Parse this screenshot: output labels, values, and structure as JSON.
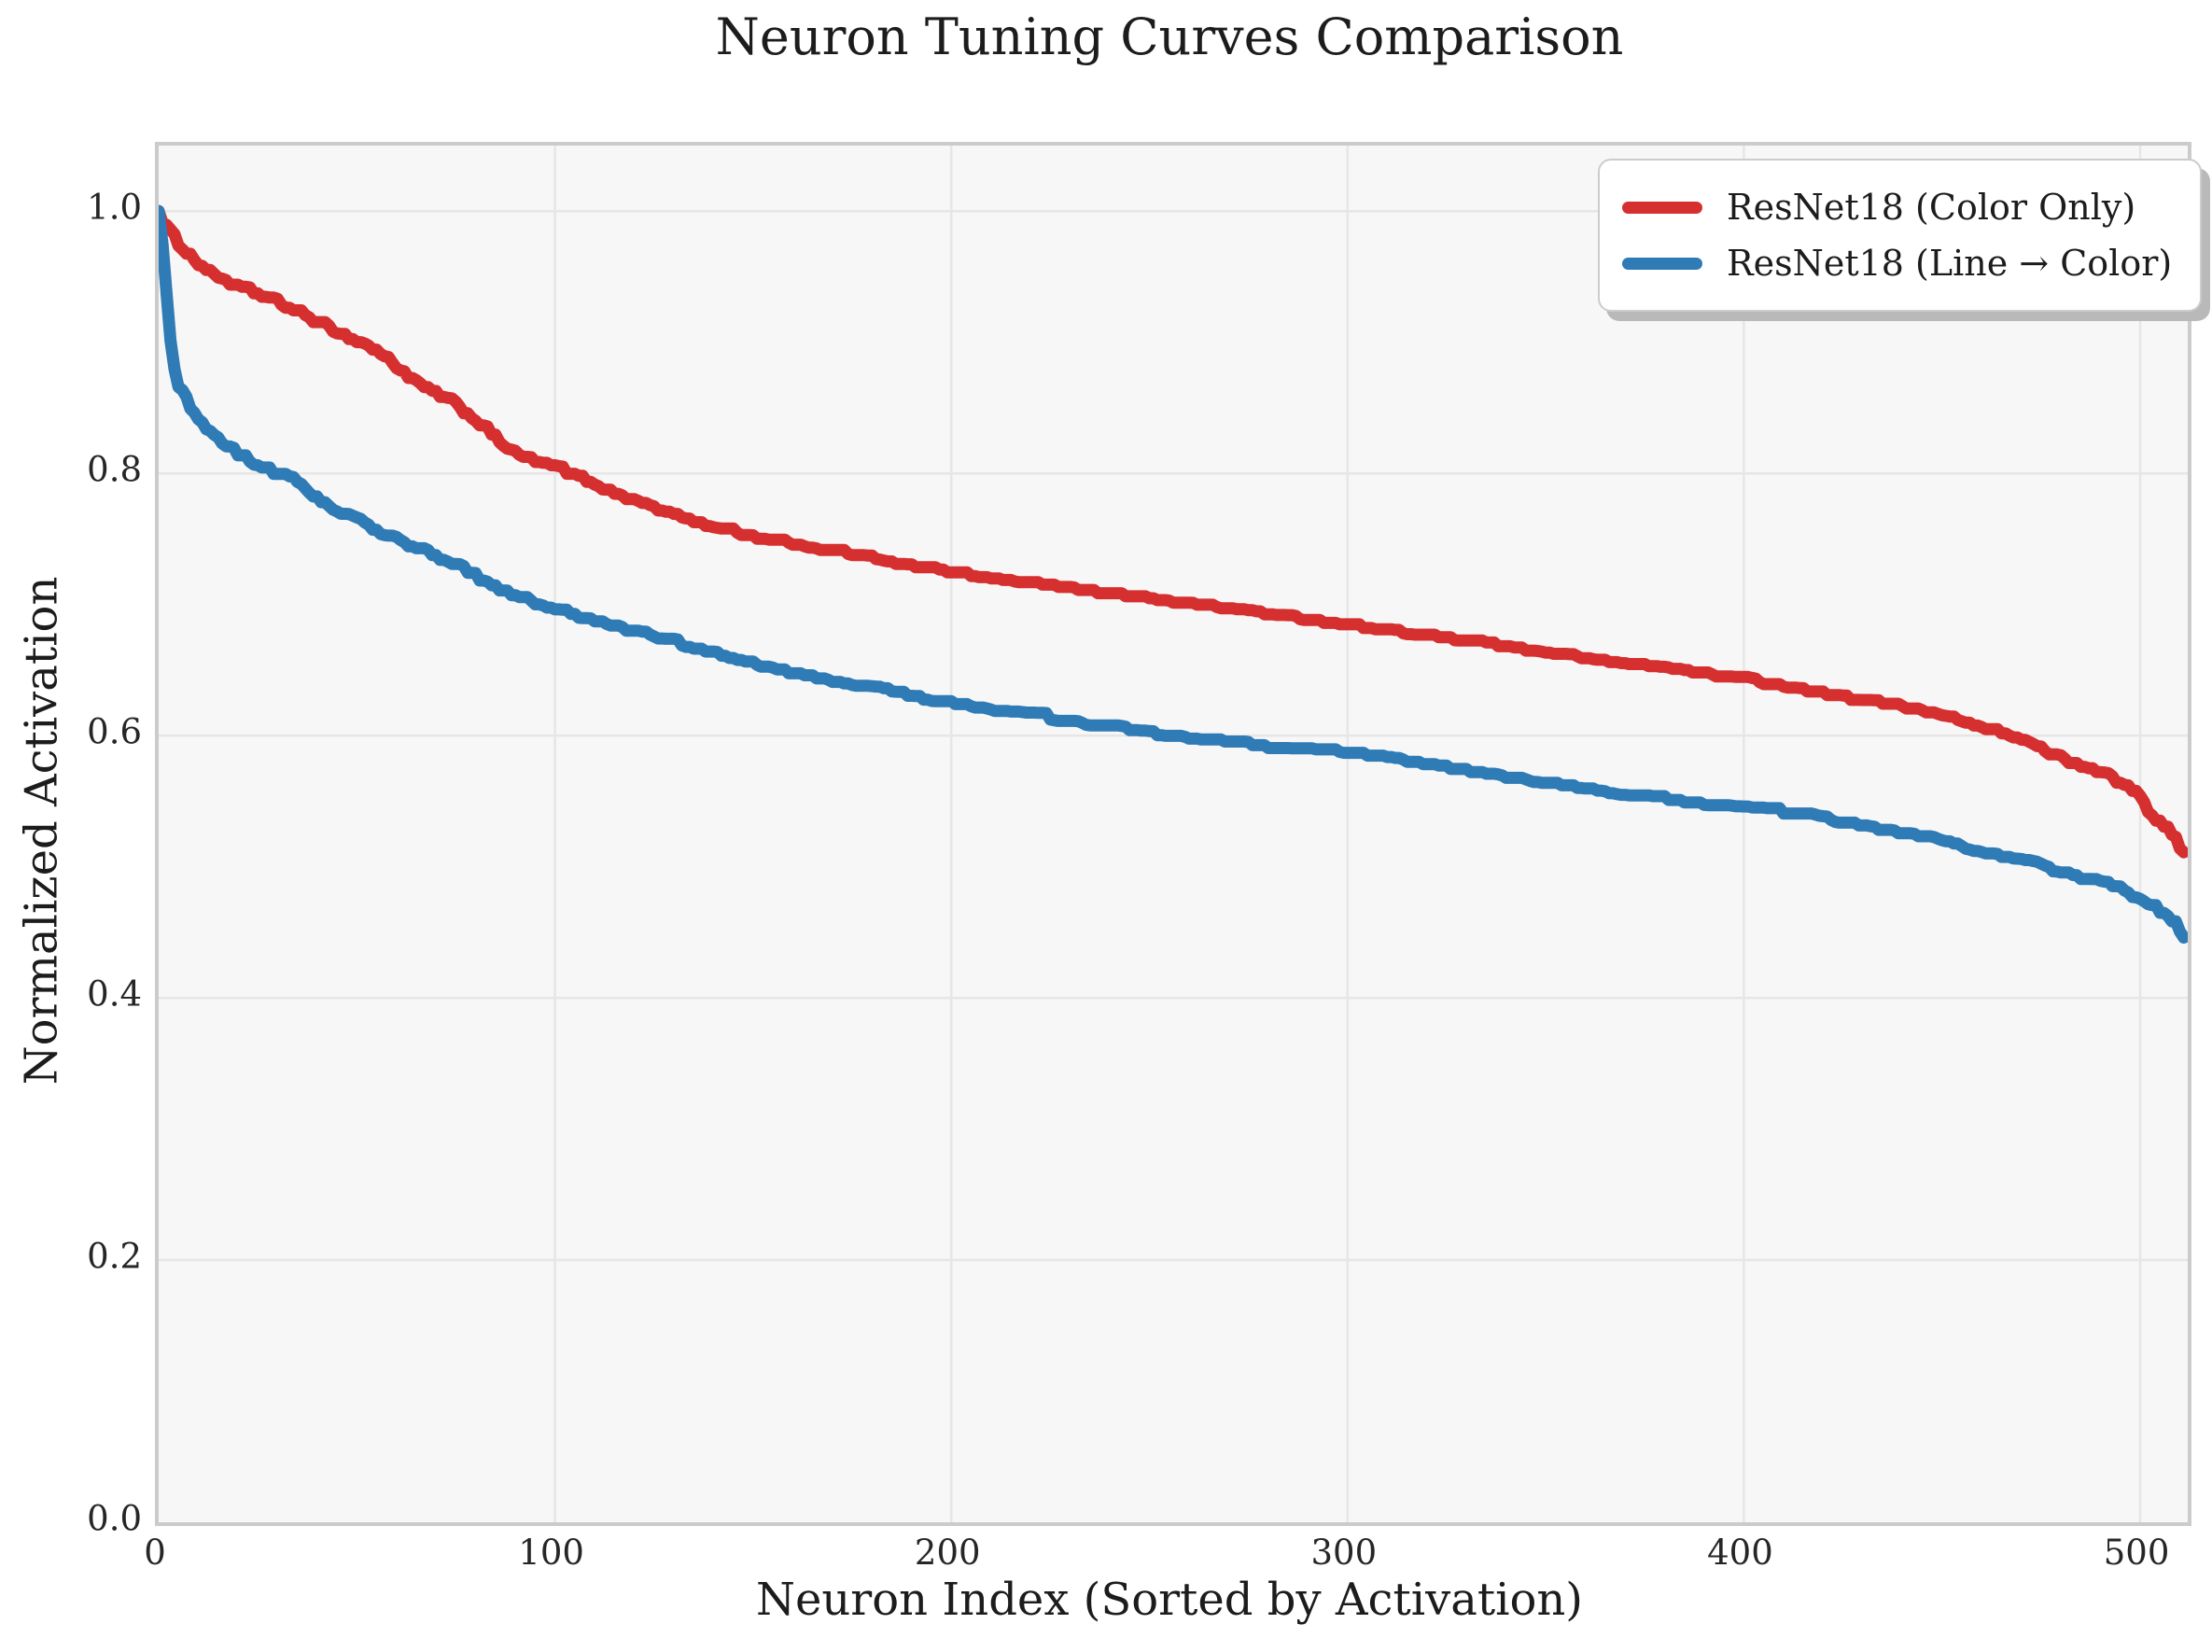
{
  "chart_data": {
    "type": "line",
    "title": "Neuron Tuning Curves Comparison",
    "xlabel": "Neuron Index (Sorted by Activation)",
    "ylabel": "Normalized Activation",
    "xlim": [
      0,
      512
    ],
    "ylim": [
      0,
      1.05
    ],
    "grid": true,
    "legend_position": "top-right",
    "xticks": [
      0,
      100,
      200,
      300,
      400,
      500
    ],
    "xtick_labels": [
      "0",
      "100",
      "200",
      "300",
      "400",
      "500"
    ],
    "yticks": [
      0.0,
      0.2,
      0.4,
      0.6,
      0.8,
      1.0
    ],
    "ytick_labels": [
      "0.0",
      "0.2",
      "0.4",
      "0.6",
      "0.8",
      "1.0"
    ],
    "colors": {
      "plot_background": "#f7f7f7",
      "grid": "#e6e6e6",
      "spine": "#cbcbcb",
      "red_series": "#d62f30",
      "blue_series": "#2f7bb6"
    },
    "series": [
      {
        "name": "ResNet18 (Color Only)",
        "color": "#d62f30",
        "line_width": 13,
        "points": [
          [
            0,
            1.0
          ],
          [
            1,
            0.993
          ],
          [
            3,
            0.984
          ],
          [
            5,
            0.976
          ],
          [
            8,
            0.966
          ],
          [
            11,
            0.958
          ],
          [
            14,
            0.952
          ],
          [
            18,
            0.946
          ],
          [
            22,
            0.941
          ],
          [
            27,
            0.935
          ],
          [
            32,
            0.928
          ],
          [
            37,
            0.921
          ],
          [
            42,
            0.913
          ],
          [
            47,
            0.906
          ],
          [
            52,
            0.899
          ],
          [
            56,
            0.892
          ],
          [
            60,
            0.882
          ],
          [
            64,
            0.872
          ],
          [
            68,
            0.864
          ],
          [
            73,
            0.857
          ],
          [
            78,
            0.846
          ],
          [
            82,
            0.836
          ],
          [
            86,
            0.825
          ],
          [
            90,
            0.815
          ],
          [
            95,
            0.81
          ],
          [
            100,
            0.806
          ],
          [
            107,
            0.797
          ],
          [
            114,
            0.787
          ],
          [
            122,
            0.778
          ],
          [
            130,
            0.769
          ],
          [
            138,
            0.762
          ],
          [
            147,
            0.755
          ],
          [
            157,
            0.749
          ],
          [
            167,
            0.744
          ],
          [
            177,
            0.738
          ],
          [
            188,
            0.732
          ],
          [
            200,
            0.726
          ],
          [
            213,
            0.721
          ],
          [
            226,
            0.715
          ],
          [
            239,
            0.71
          ],
          [
            252,
            0.705
          ],
          [
            265,
            0.7
          ],
          [
            278,
            0.695
          ],
          [
            290,
            0.69
          ],
          [
            300,
            0.686
          ],
          [
            312,
            0.681
          ],
          [
            324,
            0.676
          ],
          [
            336,
            0.671
          ],
          [
            348,
            0.666
          ],
          [
            360,
            0.661
          ],
          [
            372,
            0.656
          ],
          [
            382,
            0.652
          ],
          [
            392,
            0.648
          ],
          [
            400,
            0.644
          ],
          [
            408,
            0.64
          ],
          [
            416,
            0.636
          ],
          [
            424,
            0.631
          ],
          [
            432,
            0.627
          ],
          [
            440,
            0.623
          ],
          [
            448,
            0.619
          ],
          [
            455,
            0.613
          ],
          [
            461,
            0.607
          ],
          [
            467,
            0.602
          ],
          [
            471,
            0.596
          ],
          [
            475,
            0.59
          ],
          [
            479,
            0.585
          ],
          [
            483,
            0.58
          ],
          [
            487,
            0.577
          ],
          [
            491,
            0.571
          ],
          [
            495,
            0.565
          ],
          [
            499,
            0.557
          ],
          [
            501,
            0.549
          ],
          [
            503,
            0.539
          ],
          [
            505,
            0.534
          ],
          [
            507,
            0.532
          ],
          [
            509,
            0.521
          ],
          [
            511,
            0.511
          ]
        ]
      },
      {
        "name": "ResNet18 (Line → Color)",
        "color": "#2f7bb6",
        "line_width": 13,
        "points": [
          [
            0,
            1.0
          ],
          [
            1,
            0.972
          ],
          [
            2,
            0.935
          ],
          [
            3,
            0.9
          ],
          [
            4,
            0.88
          ],
          [
            5,
            0.868
          ],
          [
            7,
            0.856
          ],
          [
            9,
            0.846
          ],
          [
            11,
            0.838
          ],
          [
            13,
            0.833
          ],
          [
            16,
            0.824
          ],
          [
            19,
            0.817
          ],
          [
            22,
            0.812
          ],
          [
            25,
            0.807
          ],
          [
            28,
            0.803
          ],
          [
            32,
            0.799
          ],
          [
            35,
            0.795
          ],
          [
            38,
            0.786
          ],
          [
            41,
            0.779
          ],
          [
            45,
            0.772
          ],
          [
            49,
            0.766
          ],
          [
            54,
            0.759
          ],
          [
            59,
            0.752
          ],
          [
            65,
            0.744
          ],
          [
            72,
            0.735
          ],
          [
            80,
            0.722
          ],
          [
            88,
            0.709
          ],
          [
            94,
            0.703
          ],
          [
            100,
            0.698
          ],
          [
            107,
            0.691
          ],
          [
            114,
            0.685
          ],
          [
            124,
            0.677
          ],
          [
            134,
            0.669
          ],
          [
            144,
            0.661
          ],
          [
            154,
            0.653
          ],
          [
            164,
            0.647
          ],
          [
            174,
            0.641
          ],
          [
            187,
            0.633
          ],
          [
            200,
            0.626
          ],
          [
            214,
            0.62
          ],
          [
            228,
            0.613
          ],
          [
            242,
            0.607
          ],
          [
            256,
            0.601
          ],
          [
            270,
            0.596
          ],
          [
            283,
            0.592
          ],
          [
            295,
            0.59
          ],
          [
            300,
            0.589
          ],
          [
            312,
            0.584
          ],
          [
            324,
            0.578
          ],
          [
            336,
            0.572
          ],
          [
            348,
            0.566
          ],
          [
            360,
            0.561
          ],
          [
            372,
            0.556
          ],
          [
            382,
            0.552
          ],
          [
            392,
            0.549
          ],
          [
            400,
            0.547
          ],
          [
            410,
            0.543
          ],
          [
            420,
            0.538
          ],
          [
            430,
            0.533
          ],
          [
            440,
            0.527
          ],
          [
            450,
            0.521
          ],
          [
            458,
            0.514
          ],
          [
            464,
            0.51
          ],
          [
            470,
            0.506
          ],
          [
            476,
            0.501
          ],
          [
            482,
            0.495
          ],
          [
            488,
            0.49
          ],
          [
            493,
            0.487
          ],
          [
            497,
            0.481
          ],
          [
            500,
            0.476
          ],
          [
            503,
            0.471
          ],
          [
            506,
            0.465
          ],
          [
            509,
            0.458
          ],
          [
            511,
            0.446
          ]
        ]
      }
    ]
  }
}
